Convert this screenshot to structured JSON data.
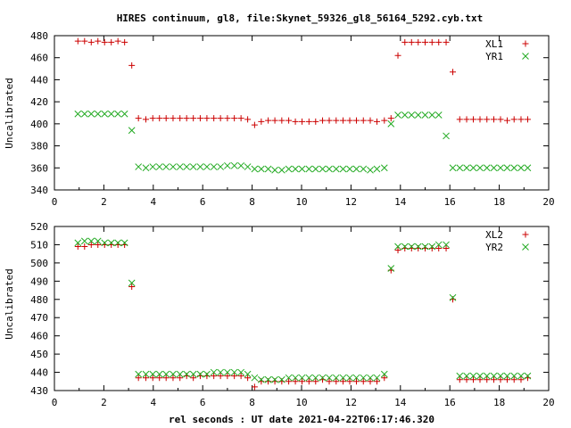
{
  "title": "HIRES continuum, gl8, file:Skynet_59326_gl8_56164_5292.cyb.txt",
  "colors": {
    "series1": "#cc0000",
    "series2": "#22aa22",
    "axis": "#000000",
    "background": "#ffffff"
  },
  "chart_data": [
    {
      "type": "scatter",
      "xlabel": "",
      "ylabel": "Uncalibrated",
      "xlim": [
        0,
        20
      ],
      "ylim": [
        340,
        480
      ],
      "xticks": [
        0,
        2,
        4,
        6,
        8,
        10,
        12,
        14,
        16,
        18,
        20
      ],
      "yticks": [
        340,
        360,
        380,
        400,
        420,
        440,
        460,
        480
      ],
      "grid": false,
      "legend_position": "top-right",
      "series": [
        {
          "name": "XL1",
          "marker": "plus",
          "x": [
            0.95,
            1.22,
            1.49,
            1.76,
            2.03,
            2.3,
            2.57,
            2.84,
            3.13,
            3.4,
            3.7,
            3.98,
            4.25,
            4.52,
            4.8,
            5.08,
            5.35,
            5.62,
            5.9,
            6.17,
            6.45,
            6.72,
            7.0,
            7.28,
            7.55,
            7.82,
            8.1,
            8.37,
            8.65,
            8.92,
            9.2,
            9.48,
            9.75,
            10.02,
            10.3,
            10.57,
            10.85,
            11.12,
            11.4,
            11.68,
            11.95,
            12.22,
            12.5,
            12.78,
            13.05,
            13.35,
            13.62,
            13.9,
            14.18,
            14.45,
            14.72,
            15.0,
            15.28,
            15.55,
            15.85,
            16.12,
            16.4,
            16.68,
            16.95,
            17.22,
            17.5,
            17.78,
            18.05,
            18.32,
            18.6,
            18.88,
            19.15
          ],
          "y": [
            475,
            475,
            474,
            475,
            474,
            474,
            475,
            474,
            453,
            405,
            404,
            405,
            405,
            405,
            405,
            405,
            405,
            405,
            405,
            405,
            405,
            405,
            405,
            405,
            405,
            404,
            399,
            402,
            403,
            403,
            403,
            403,
            402,
            402,
            402,
            402,
            403,
            403,
            403,
            403,
            403,
            403,
            403,
            403,
            402,
            403,
            405,
            462,
            474,
            474,
            474,
            474,
            474,
            474,
            474,
            447,
            404,
            404,
            404,
            404,
            404,
            404,
            404,
            403,
            404,
            404,
            404
          ]
        },
        {
          "name": "YR1",
          "marker": "x",
          "x": [
            0.95,
            1.22,
            1.49,
            1.76,
            2.03,
            2.3,
            2.57,
            2.84,
            3.13,
            3.4,
            3.7,
            3.98,
            4.25,
            4.52,
            4.8,
            5.08,
            5.35,
            5.62,
            5.9,
            6.17,
            6.45,
            6.72,
            7.0,
            7.28,
            7.55,
            7.82,
            8.1,
            8.37,
            8.65,
            8.92,
            9.2,
            9.48,
            9.75,
            10.02,
            10.3,
            10.57,
            10.85,
            11.12,
            11.4,
            11.68,
            11.95,
            12.22,
            12.5,
            12.78,
            13.05,
            13.35,
            13.62,
            13.9,
            14.18,
            14.45,
            14.72,
            15.0,
            15.28,
            15.55,
            15.85,
            16.12,
            16.4,
            16.68,
            16.95,
            17.22,
            17.5,
            17.78,
            18.05,
            18.32,
            18.6,
            18.88,
            19.15
          ],
          "y": [
            409,
            409,
            409,
            409,
            409,
            409,
            409,
            409,
            394,
            361,
            360,
            361,
            361,
            361,
            361,
            361,
            361,
            361,
            361,
            361,
            361,
            361,
            362,
            362,
            362,
            361,
            359,
            359,
            359,
            358,
            358,
            359,
            359,
            359,
            359,
            359,
            359,
            359,
            359,
            359,
            359,
            359,
            359,
            358,
            359,
            360,
            400,
            408,
            408,
            408,
            408,
            408,
            408,
            408,
            389,
            360,
            360,
            360,
            360,
            360,
            360,
            360,
            360,
            360,
            360,
            360,
            360
          ]
        }
      ]
    },
    {
      "type": "scatter",
      "xlabel": "rel seconds : UT date 2021-04-22T06:17:46.320",
      "ylabel": "Uncalibrated",
      "xlim": [
        0,
        20
      ],
      "ylim": [
        430,
        520
      ],
      "xticks": [
        0,
        2,
        4,
        6,
        8,
        10,
        12,
        14,
        16,
        18,
        20
      ],
      "yticks": [
        430,
        440,
        450,
        460,
        470,
        480,
        490,
        500,
        510,
        520
      ],
      "grid": false,
      "legend_position": "top-right",
      "series": [
        {
          "name": "XL2",
          "marker": "plus",
          "x": [
            0.95,
            1.22,
            1.49,
            1.76,
            2.03,
            2.3,
            2.57,
            2.84,
            3.13,
            3.4,
            3.7,
            3.98,
            4.25,
            4.52,
            4.8,
            5.08,
            5.35,
            5.62,
            5.9,
            6.17,
            6.45,
            6.72,
            7.0,
            7.28,
            7.55,
            7.82,
            8.1,
            8.37,
            8.65,
            8.92,
            9.2,
            9.48,
            9.75,
            10.02,
            10.3,
            10.57,
            10.85,
            11.12,
            11.4,
            11.68,
            11.95,
            12.22,
            12.5,
            12.78,
            13.05,
            13.35,
            13.62,
            13.9,
            14.18,
            14.45,
            14.72,
            15.0,
            15.28,
            15.55,
            15.85,
            16.12,
            16.4,
            16.68,
            16.95,
            17.22,
            17.5,
            17.78,
            18.05,
            18.32,
            18.6,
            18.88,
            19.15
          ],
          "y": [
            509,
            509,
            510,
            510,
            510,
            510,
            510,
            510,
            487,
            437,
            437,
            437,
            437,
            437,
            437,
            437,
            438,
            437,
            438,
            438,
            438,
            438,
            438,
            438,
            438,
            437,
            432,
            435,
            435,
            435,
            435,
            435,
            435,
            435,
            435,
            435,
            436,
            435,
            435,
            435,
            435,
            435,
            435,
            435,
            435,
            437,
            496,
            507,
            508,
            508,
            508,
            508,
            508,
            508,
            508,
            480,
            436,
            436,
            436,
            436,
            436,
            436,
            436,
            436,
            436,
            436,
            437
          ]
        },
        {
          "name": "YR2",
          "marker": "x",
          "x": [
            0.95,
            1.22,
            1.49,
            1.76,
            2.03,
            2.3,
            2.57,
            2.84,
            3.13,
            3.4,
            3.7,
            3.98,
            4.25,
            4.52,
            4.8,
            5.08,
            5.35,
            5.62,
            5.9,
            6.17,
            6.45,
            6.72,
            7.0,
            7.28,
            7.55,
            7.82,
            8.1,
            8.37,
            8.65,
            8.92,
            9.2,
            9.48,
            9.75,
            10.02,
            10.3,
            10.57,
            10.85,
            11.12,
            11.4,
            11.68,
            11.95,
            12.22,
            12.5,
            12.78,
            13.05,
            13.35,
            13.62,
            13.9,
            14.18,
            14.45,
            14.72,
            15.0,
            15.28,
            15.55,
            15.85,
            16.12,
            16.4,
            16.68,
            16.95,
            17.22,
            17.5,
            17.78,
            18.05,
            18.32,
            18.6,
            18.88,
            19.15
          ],
          "y": [
            511,
            512,
            512,
            512,
            511,
            511,
            511,
            511,
            489,
            439,
            439,
            439,
            439,
            439,
            439,
            439,
            439,
            439,
            439,
            439,
            440,
            440,
            440,
            440,
            440,
            439,
            437,
            436,
            436,
            436,
            436,
            437,
            437,
            437,
            437,
            437,
            437,
            437,
            437,
            437,
            437,
            437,
            437,
            437,
            437,
            439,
            497,
            509,
            509,
            509,
            509,
            509,
            509,
            510,
            510,
            481,
            438,
            438,
            438,
            438,
            438,
            438,
            438,
            438,
            438,
            438,
            438
          ]
        }
      ]
    }
  ]
}
